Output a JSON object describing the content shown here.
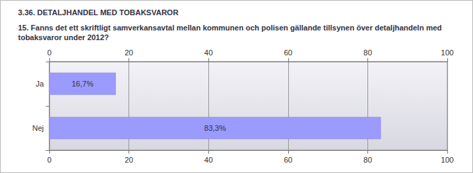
{
  "chart_data": {
    "type": "bar",
    "orientation": "horizontal",
    "title": "3.36. DETALJHANDEL MED TOBAKSVAROR",
    "subtitle": "15. Fanns det ett skriftligt samverkansavtal mellan kommunen och polisen gällande tillsynen över detaljhandeln med tobaksvaror under 2012?",
    "categories": [
      "Ja",
      "Nej"
    ],
    "values": [
      16.7,
      83.3
    ],
    "value_labels": [
      "16,7%",
      "83,3%"
    ],
    "data_labels": true,
    "color": "#9a9aff",
    "xlim": [
      0,
      100
    ],
    "xticks": [
      0,
      20,
      40,
      60,
      80,
      100
    ],
    "grid": true
  }
}
